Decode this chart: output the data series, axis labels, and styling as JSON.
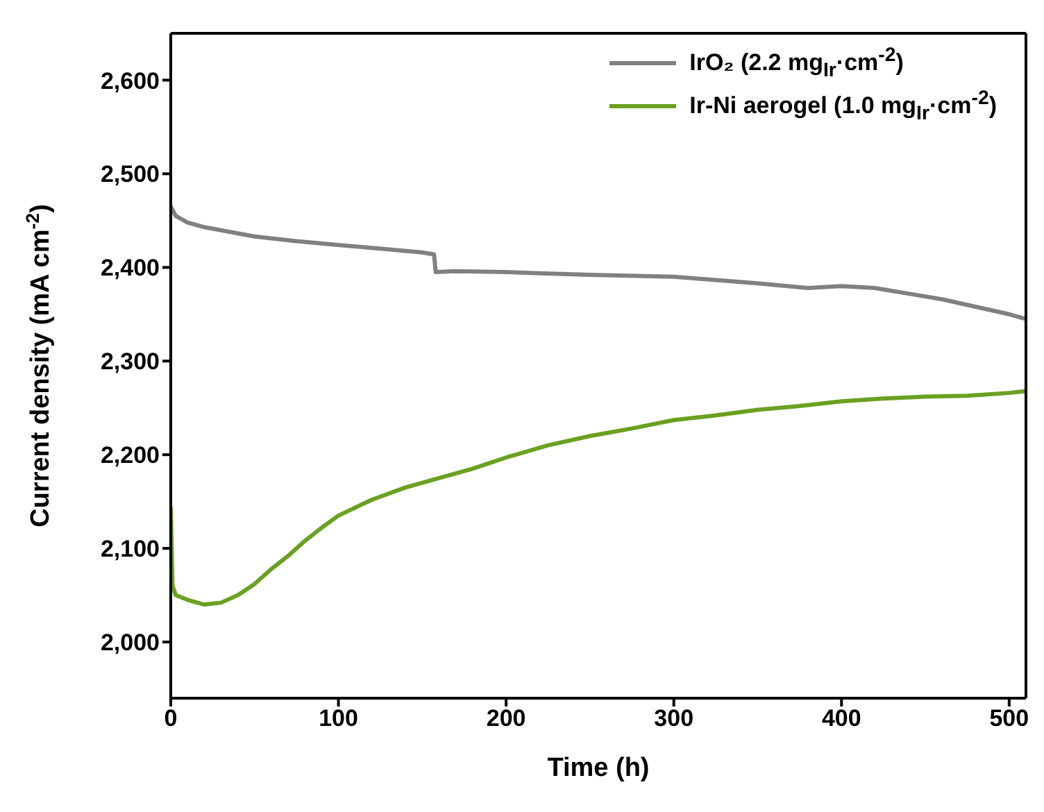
{
  "chart_data": {
    "type": "line",
    "xlabel": "Time (h)",
    "ylabel": "Current density (mA cm$^{-2}$)",
    "xlim": [
      0,
      510
    ],
    "xticks": [
      0,
      100,
      200,
      300,
      400,
      500
    ],
    "ylim": [
      1940,
      2650
    ],
    "yticks": [
      {
        "value": 2000,
        "label": "2,000"
      },
      {
        "value": 2100,
        "label": "2,100"
      },
      {
        "value": 2200,
        "label": "2,200"
      },
      {
        "value": 2300,
        "label": "2,300"
      },
      {
        "value": 2400,
        "label": "2,400"
      },
      {
        "value": 2500,
        "label": "2,500"
      },
      {
        "value": 2600,
        "label": "2,600"
      }
    ],
    "legend": "top right",
    "marker": "none",
    "line_style": "solid",
    "series": [
      {
        "name": "IrO₂ (2.2 mg$_{Ir}$·cm$^{-2}$)",
        "color": "#808080",
        "x": [
          0,
          3,
          10,
          20,
          35,
          50,
          75,
          100,
          125,
          150,
          157,
          158,
          170,
          200,
          250,
          300,
          350,
          380,
          400,
          420,
          440,
          460,
          480,
          500,
          510
        ],
        "values": [
          2465,
          2455,
          2448,
          2443,
          2438,
          2433,
          2428,
          2424,
          2420,
          2416,
          2414,
          2395,
          2396,
          2395,
          2392,
          2390,
          2383,
          2378,
          2380,
          2378,
          2372,
          2366,
          2358,
          2350,
          2345
        ]
      },
      {
        "name": "Ir-Ni aerogel (1.0 mg$_{Ir}$·cm$^{-2}$)",
        "color": "#6aa121",
        "x": [
          0,
          1,
          3,
          10,
          20,
          30,
          40,
          50,
          60,
          70,
          80,
          90,
          100,
          120,
          140,
          160,
          180,
          200,
          225,
          250,
          275,
          300,
          325,
          350,
          375,
          400,
          425,
          450,
          475,
          500,
          510
        ],
        "values": [
          2145,
          2060,
          2050,
          2045,
          2040,
          2042,
          2050,
          2062,
          2078,
          2092,
          2108,
          2122,
          2135,
          2152,
          2165,
          2175,
          2185,
          2197,
          2210,
          2220,
          2228,
          2237,
          2242,
          2248,
          2252,
          2257,
          2260,
          2262,
          2263,
          2266,
          2268
        ]
      }
    ]
  }
}
